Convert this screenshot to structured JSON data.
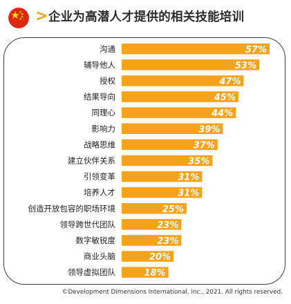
{
  "header": {
    "flag_icon": "china-flag-icon",
    "title": "企业为高潜人才提供的相关技能培训"
  },
  "colors": {
    "bar": "#f5a31c",
    "accent": "#f5a01a",
    "flag_red": "#de2910",
    "flag_star": "#ffde00"
  },
  "chart_data": {
    "type": "bar",
    "orientation": "horizontal",
    "categories": [
      "沟通",
      "辅导他人",
      "授权",
      "结果导向",
      "同理心",
      "影响力",
      "战略思维",
      "建立伙伴关系",
      "引领变革",
      "培养人才",
      "创造开放包容的职场环境",
      "领导跨世代团队",
      "数字敏锐度",
      "商业头脑",
      "领导虚拟团队"
    ],
    "values": [
      57,
      53,
      47,
      45,
      44,
      39,
      37,
      35,
      31,
      31,
      25,
      23,
      23,
      20,
      18
    ],
    "labels": [
      "57%",
      "53%",
      "47%",
      "45%",
      "44%",
      "39%",
      "37%",
      "35%",
      "31%",
      "31%",
      "25%",
      "23%",
      "23%",
      "20%",
      "18%"
    ],
    "unit": "%",
    "xlim": [
      0,
      57
    ],
    "grid": false,
    "legend": "none"
  },
  "footer": {
    "copyright": "©Development Dimensions International, Inc., 2021. All rights reserved."
  }
}
